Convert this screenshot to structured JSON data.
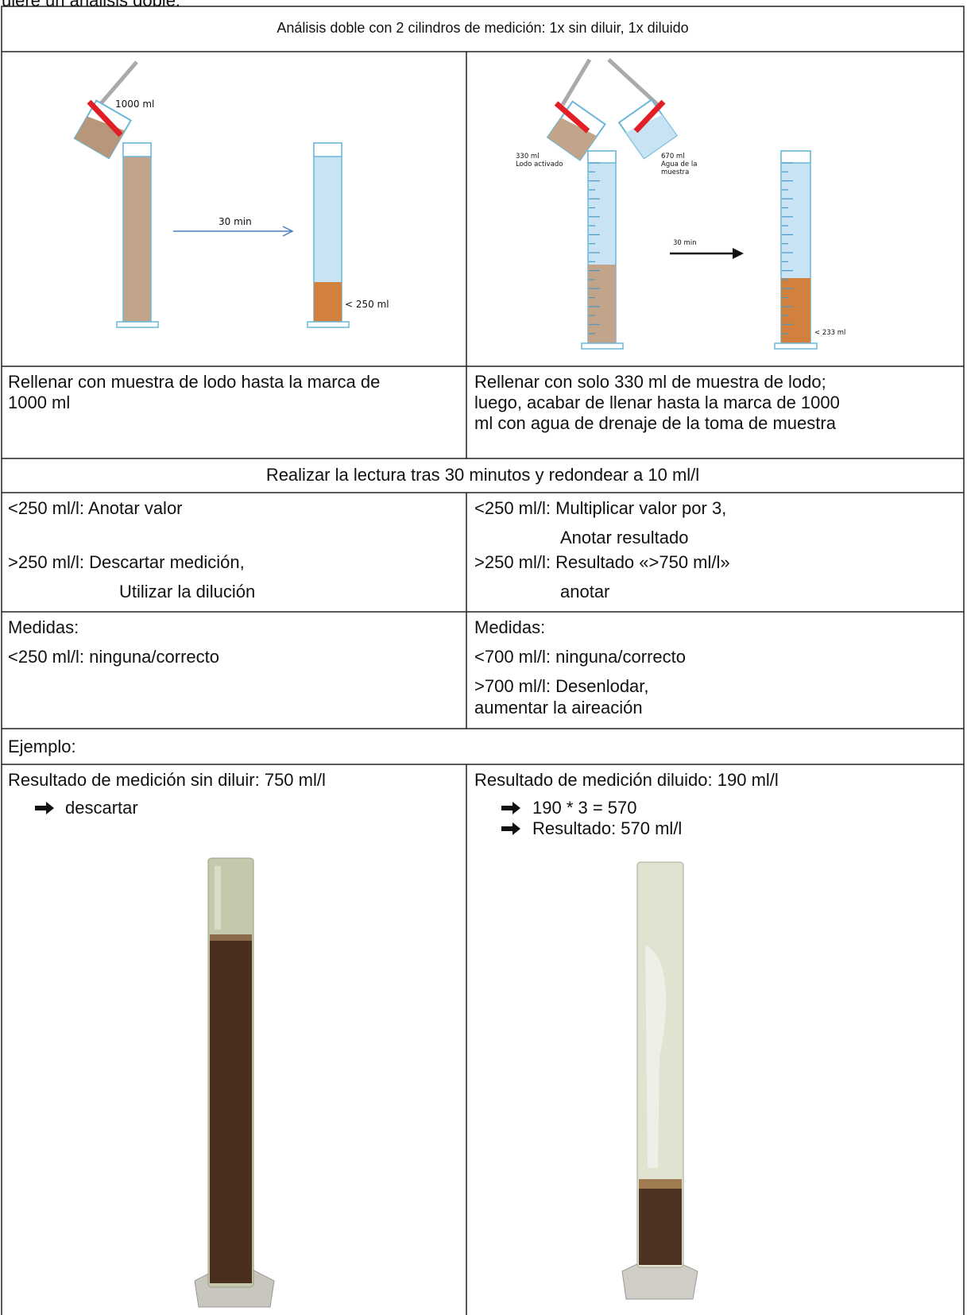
{
  "intro": "uiere un análisis doble.",
  "table": {
    "header": "Análisis doble con 2 cilindros de medición: 1x sin diluir, 1x diluido",
    "illustration_left": {
      "fill_label": "1000 ml",
      "time_label": "30 min",
      "result_label": "< 250 ml"
    },
    "illustration_right": {
      "sludge_label": [
        "330 ml",
        "Lodo activado"
      ],
      "water_label": [
        "670 ml",
        "Agua de la",
        "muestra"
      ],
      "time_label": "30 min",
      "result_label": "< 233 ml"
    },
    "fill_row": {
      "left": [
        "Rellenar con muestra de lodo hasta la marca de",
        "1000 ml"
      ],
      "right": [
        "Rellenar con solo 330 ml de muestra de lodo;",
        "luego, acabar de llenar hasta la marca de 1000",
        "ml con agua de drenaje de la toma de muestra"
      ]
    },
    "reading_row": "Realizar la lectura tras 30 minutos y redondear a 10 ml/l",
    "rules_row": {
      "left": [
        "<250 ml/l: Anotar valor",
        ">250 ml/l: Descartar medición,",
        "Utilizar la dilución"
      ],
      "right": [
        "<250 ml/l: Multiplicar valor por 3,",
        "Anotar resultado",
        ">250 ml/l: Resultado «>750 ml/l»",
        "anotar"
      ]
    },
    "measures_row": {
      "left": [
        "Medidas:",
        "<250 ml/l: ninguna/correcto"
      ],
      "right": [
        "Medidas:",
        "<700 ml/l: ninguna/correcto",
        ">700 ml/l: Desenlodar,",
        "aumentar la aireación"
      ]
    },
    "example_label": "Ejemplo:",
    "example_row": {
      "left": {
        "result": "Resultado de medición sin diluir: 750 ml/l",
        "steps": [
          "descartar"
        ]
      },
      "right": {
        "result": "Resultado de medición diluido: 190 ml/l",
        "steps": [
          "190 * 3 = 570",
          "Resultado: 570 ml/l"
        ]
      }
    }
  }
}
